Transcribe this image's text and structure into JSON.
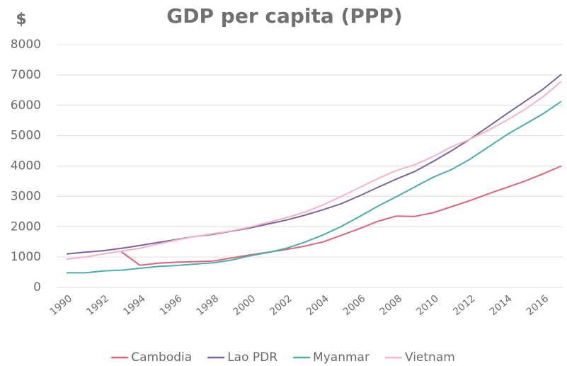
{
  "chart_data": {
    "type": "line",
    "title": "GDP per capita (PPP)",
    "ylabel": "$",
    "x": [
      1990,
      1991,
      1992,
      1993,
      1994,
      1995,
      1996,
      1997,
      1998,
      1999,
      2000,
      2001,
      2002,
      2003,
      2004,
      2005,
      2006,
      2007,
      2008,
      2009,
      2010,
      2011,
      2012,
      2013,
      2014,
      2015,
      2016,
      2017
    ],
    "xlim": [
      1990,
      2017
    ],
    "xticks": [
      1990,
      1992,
      1994,
      1996,
      1998,
      2000,
      2002,
      2004,
      2006,
      2008,
      2010,
      2012,
      2014,
      2016
    ],
    "ylim": [
      0,
      8000
    ],
    "yticks": [
      0,
      1000,
      2000,
      3000,
      4000,
      5000,
      6000,
      7000,
      8000
    ],
    "grid": true,
    "legend": "bottom",
    "series": [
      {
        "name": "Cambodia",
        "color": "#e06377",
        "values": [
          null,
          null,
          null,
          1170,
          730,
          800,
          830,
          850,
          870,
          970,
          1070,
          1160,
          1250,
          1360,
          1500,
          1720,
          1940,
          2180,
          2350,
          2340,
          2460,
          2660,
          2860,
          3080,
          3290,
          3500,
          3740,
          4000
        ]
      },
      {
        "name": "Lao PDR",
        "color": "#7a62a0",
        "values": [
          1100,
          1160,
          1210,
          1290,
          1380,
          1480,
          1580,
          1680,
          1750,
          1850,
          1960,
          2090,
          2220,
          2380,
          2560,
          2760,
          3020,
          3300,
          3570,
          3820,
          4150,
          4500,
          4880,
          5290,
          5710,
          6120,
          6530,
          7020
        ]
      },
      {
        "name": "Myanmar",
        "color": "#4aacb0",
        "values": [
          480,
          480,
          540,
          570,
          630,
          690,
          720,
          770,
          810,
          900,
          1040,
          1150,
          1290,
          1490,
          1730,
          2010,
          2340,
          2680,
          2990,
          3310,
          3630,
          3880,
          4220,
          4620,
          5020,
          5370,
          5720,
          6130
        ]
      },
      {
        "name": "Vietnam",
        "color": "#f7b3c2",
        "values": [
          930,
          1000,
          1100,
          1200,
          1290,
          1430,
          1560,
          1680,
          1770,
          1860,
          1990,
          2140,
          2300,
          2480,
          2720,
          3000,
          3290,
          3590,
          3850,
          4040,
          4310,
          4630,
          4880,
          5170,
          5500,
          5860,
          6280,
          6790
        ]
      }
    ]
  }
}
